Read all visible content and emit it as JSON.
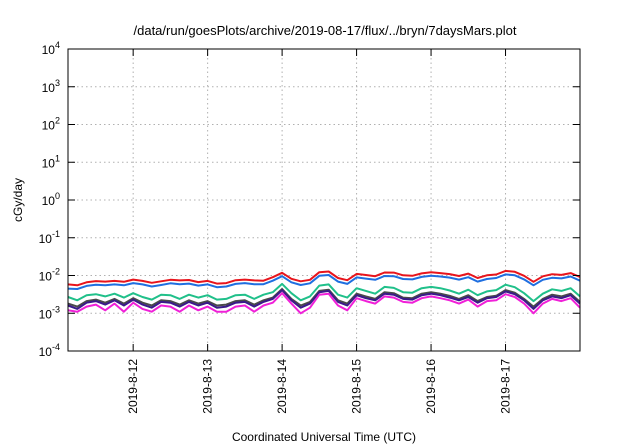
{
  "chart_data": {
    "type": "line",
    "title": "/data/run/goesPlots/archive/2019-08-17/flux/../bryn/7daysMars.plot",
    "xlabel": "Coordinated Universal Time (UTC)",
    "ylabel": "cGy/day",
    "y_scale": "log",
    "ylim": [
      0.0001,
      10000
    ],
    "y_tick_labels": [
      {
        "exp": "-4",
        "value": 0.0001
      },
      {
        "exp": "-3",
        "value": 0.001
      },
      {
        "exp": "-2",
        "value": 0.01
      },
      {
        "exp": "-1",
        "value": 0.1
      },
      {
        "exp": "0",
        "value": 1
      },
      {
        "exp": "1",
        "value": 10
      },
      {
        "exp": "2",
        "value": 100
      },
      {
        "exp": "3",
        "value": 1000
      },
      {
        "exp": "4",
        "value": 10000
      }
    ],
    "xlim": [
      "2019-08-11 03:00",
      "2019-08-18 00:00"
    ],
    "x_ticks": [
      "2019-8-12",
      "2019-8-13",
      "2019-8-14",
      "2019-8-15",
      "2019-8-16",
      "2019-8-17"
    ],
    "x_tick_dates": [
      "2019-08-12 00:00",
      "2019-08-13 00:00",
      "2019-08-14 00:00",
      "2019-08-15 00:00",
      "2019-08-16 00:00",
      "2019-08-17 00:00"
    ],
    "grid": true,
    "legend": "none",
    "x": [
      "2019-08-11 03:00",
      "2019-08-11 06:00",
      "2019-08-11 09:00",
      "2019-08-11 12:00",
      "2019-08-11 15:00",
      "2019-08-11 18:00",
      "2019-08-11 21:00",
      "2019-08-12 00:00",
      "2019-08-12 03:00",
      "2019-08-12 06:00",
      "2019-08-12 09:00",
      "2019-08-12 12:00",
      "2019-08-12 15:00",
      "2019-08-12 18:00",
      "2019-08-12 21:00",
      "2019-08-13 00:00",
      "2019-08-13 03:00",
      "2019-08-13 06:00",
      "2019-08-13 09:00",
      "2019-08-13 12:00",
      "2019-08-13 15:00",
      "2019-08-13 18:00",
      "2019-08-13 21:00",
      "2019-08-14 00:00",
      "2019-08-14 03:00",
      "2019-08-14 06:00",
      "2019-08-14 09:00",
      "2019-08-14 12:00",
      "2019-08-14 15:00",
      "2019-08-14 18:00",
      "2019-08-14 21:00",
      "2019-08-15 00:00",
      "2019-08-15 03:00",
      "2019-08-15 06:00",
      "2019-08-15 09:00",
      "2019-08-15 12:00",
      "2019-08-15 15:00",
      "2019-08-15 18:00",
      "2019-08-15 21:00",
      "2019-08-16 00:00",
      "2019-08-16 03:00",
      "2019-08-16 06:00",
      "2019-08-16 09:00",
      "2019-08-16 12:00",
      "2019-08-16 15:00",
      "2019-08-16 18:00",
      "2019-08-16 21:00",
      "2019-08-17 00:00",
      "2019-08-17 03:00",
      "2019-08-17 06:00",
      "2019-08-17 09:00",
      "2019-08-17 12:00",
      "2019-08-17 15:00",
      "2019-08-17 18:00",
      "2019-08-17 21:00",
      "2019-08-18 00:00"
    ],
    "series": [
      {
        "color": "#e8141c",
        "values": [
          0.0058,
          0.0055,
          0.0066,
          0.0071,
          0.0069,
          0.0072,
          0.0068,
          0.0078,
          0.0072,
          0.0064,
          0.007,
          0.0077,
          0.0074,
          0.0076,
          0.0067,
          0.0072,
          0.0061,
          0.0063,
          0.0075,
          0.0078,
          0.0074,
          0.0073,
          0.009,
          0.0118,
          0.0082,
          0.007,
          0.0077,
          0.0122,
          0.0128,
          0.0086,
          0.0075,
          0.011,
          0.0103,
          0.0096,
          0.012,
          0.0119,
          0.0101,
          0.0098,
          0.0114,
          0.0122,
          0.0116,
          0.0109,
          0.0097,
          0.0112,
          0.0086,
          0.0101,
          0.0106,
          0.0132,
          0.0125,
          0.0098,
          0.0068,
          0.0095,
          0.0108,
          0.0104,
          0.0116,
          0.0091
        ]
      },
      {
        "color": "#1f6fe0",
        "values": [
          0.0045,
          0.0044,
          0.0053,
          0.0057,
          0.0055,
          0.0058,
          0.0055,
          0.0063,
          0.0058,
          0.0051,
          0.0056,
          0.0062,
          0.0059,
          0.0061,
          0.0054,
          0.0058,
          0.0049,
          0.0051,
          0.006,
          0.0063,
          0.0059,
          0.0059,
          0.0073,
          0.0096,
          0.0066,
          0.0056,
          0.0062,
          0.0098,
          0.0103,
          0.0069,
          0.006,
          0.0089,
          0.0083,
          0.0077,
          0.0097,
          0.0096,
          0.0081,
          0.0079,
          0.0092,
          0.0098,
          0.0094,
          0.0088,
          0.0078,
          0.009,
          0.0069,
          0.0081,
          0.0086,
          0.0107,
          0.0101,
          0.0079,
          0.0055,
          0.0077,
          0.0087,
          0.0084,
          0.0094,
          0.0073
        ]
      },
      {
        "color": "#20c08a",
        "values": [
          0.0027,
          0.0022,
          0.003,
          0.0032,
          0.0028,
          0.0033,
          0.0026,
          0.0034,
          0.0027,
          0.0023,
          0.0031,
          0.003,
          0.0024,
          0.0031,
          0.0026,
          0.003,
          0.0023,
          0.0024,
          0.003,
          0.0031,
          0.0024,
          0.0031,
          0.0036,
          0.006,
          0.0034,
          0.0022,
          0.0028,
          0.0054,
          0.0058,
          0.0031,
          0.0026,
          0.0046,
          0.0039,
          0.0033,
          0.005,
          0.0047,
          0.0036,
          0.0035,
          0.0046,
          0.005,
          0.0046,
          0.004,
          0.0033,
          0.0042,
          0.003,
          0.0038,
          0.0041,
          0.0057,
          0.0049,
          0.0034,
          0.0021,
          0.0033,
          0.0043,
          0.0039,
          0.0046,
          0.0028
        ]
      },
      {
        "color": "#4a4a4a",
        "values": [
          0.0018,
          0.0015,
          0.0021,
          0.0023,
          0.0019,
          0.0024,
          0.0018,
          0.0025,
          0.0019,
          0.0016,
          0.0022,
          0.0021,
          0.0017,
          0.0022,
          0.0018,
          0.0021,
          0.0016,
          0.0017,
          0.0021,
          0.0022,
          0.0017,
          0.0022,
          0.0026,
          0.0044,
          0.0024,
          0.0016,
          0.002,
          0.0039,
          0.0042,
          0.0022,
          0.0018,
          0.0033,
          0.0028,
          0.0024,
          0.0036,
          0.0034,
          0.0026,
          0.0025,
          0.0033,
          0.0036,
          0.0033,
          0.0029,
          0.0024,
          0.003,
          0.0021,
          0.0027,
          0.0029,
          0.0041,
          0.0035,
          0.0024,
          0.0015,
          0.0024,
          0.0031,
          0.0028,
          0.0033,
          0.002
        ]
      },
      {
        "color": "#3a1a8a",
        "values": [
          0.0016,
          0.0013,
          0.0019,
          0.0021,
          0.0017,
          0.0022,
          0.0016,
          0.0023,
          0.0017,
          0.0014,
          0.002,
          0.0019,
          0.0015,
          0.002,
          0.0016,
          0.0019,
          0.0014,
          0.0015,
          0.0019,
          0.002,
          0.0015,
          0.002,
          0.0024,
          0.0041,
          0.0022,
          0.0014,
          0.0018,
          0.0036,
          0.0039,
          0.002,
          0.0016,
          0.003,
          0.0025,
          0.0022,
          0.0033,
          0.0031,
          0.0024,
          0.0023,
          0.003,
          0.0033,
          0.003,
          0.0026,
          0.0022,
          0.0027,
          0.0019,
          0.0025,
          0.0027,
          0.0038,
          0.0032,
          0.0022,
          0.0013,
          0.0022,
          0.0028,
          0.0025,
          0.003,
          0.0018
        ]
      },
      {
        "color": "#f020d8",
        "values": [
          0.0012,
          0.0011,
          0.0015,
          0.0017,
          0.0012,
          0.0018,
          0.0011,
          0.0019,
          0.0013,
          0.0011,
          0.0016,
          0.0015,
          0.0011,
          0.0016,
          0.0012,
          0.0015,
          0.0011,
          0.0011,
          0.0015,
          0.0016,
          0.0011,
          0.0016,
          0.0019,
          0.0034,
          0.0018,
          0.001,
          0.0014,
          0.0031,
          0.0033,
          0.0016,
          0.0012,
          0.0025,
          0.0021,
          0.0018,
          0.0028,
          0.0026,
          0.002,
          0.0019,
          0.0025,
          0.0028,
          0.0025,
          0.0022,
          0.0018,
          0.0023,
          0.0015,
          0.0021,
          0.0022,
          0.0032,
          0.0027,
          0.0018,
          0.001,
          0.0018,
          0.0024,
          0.0021,
          0.0025,
          0.0014
        ]
      }
    ]
  }
}
